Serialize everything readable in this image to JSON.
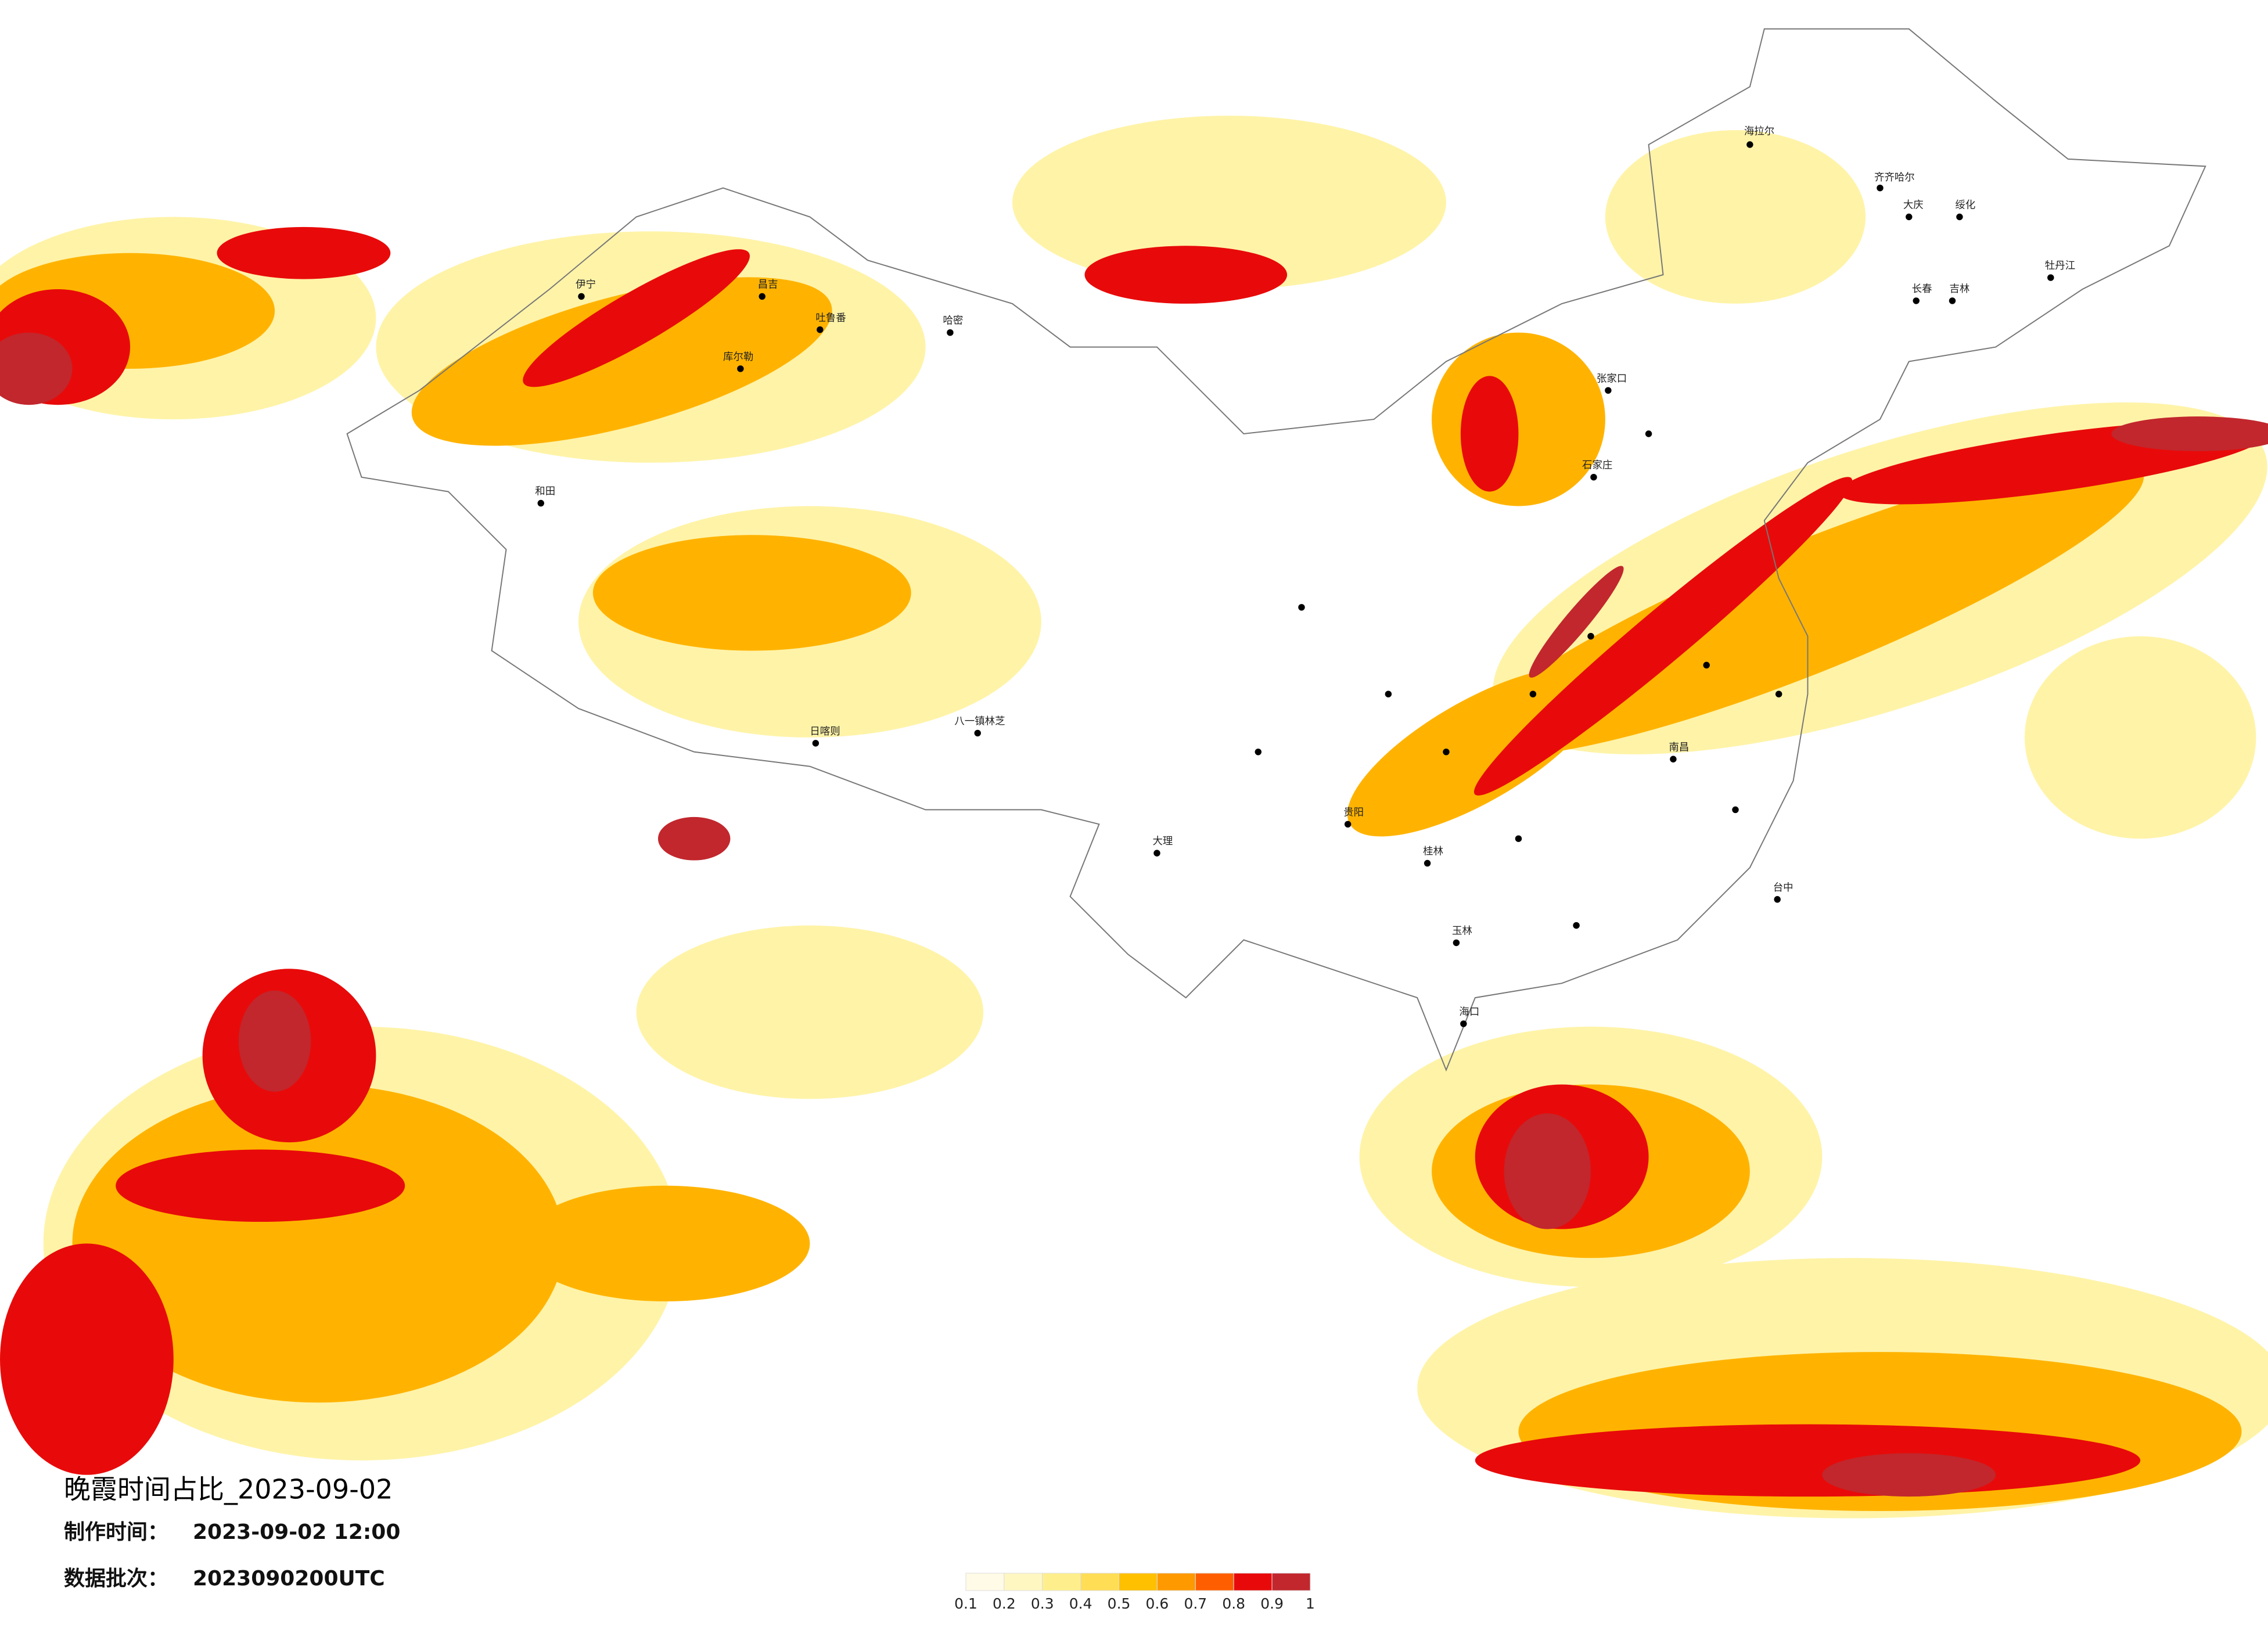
{
  "title": "晚霞时间占比_2023-09-02",
  "production_time": {
    "label": "制作时间：",
    "value": "2023-09-02 12:00"
  },
  "data_batch": {
    "label": "数据批次：",
    "value": "2023090200UTC"
  },
  "legend": {
    "ticks": [
      0.1,
      0.2,
      0.3,
      0.4,
      0.5,
      0.6,
      0.7,
      0.8,
      0.9,
      1
    ],
    "colors": [
      "#fffbe6",
      "#fff7c2",
      "#ffef8c",
      "#ffdd55",
      "#ffc000",
      "#ff9900",
      "#ff5e00",
      "#e80a0a",
      "#c1272d"
    ]
  },
  "cities": [
    "海拉尔",
    "齐齐哈尔",
    "大庆",
    "绥化",
    "长春",
    "吉林",
    "牡丹江",
    "伊宁",
    "昌吉",
    "吐鲁番",
    "哈密",
    "库尔勒",
    "和田",
    "日喀则",
    "八一镇林芝",
    "大理",
    "贵阳",
    "桂林",
    "玉林",
    "海口",
    "南昌",
    "张家口",
    "石家庄",
    "台中"
  ]
}
